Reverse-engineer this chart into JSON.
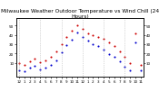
{
  "title": "Milwaukee Weather Outdoor Temperature vs Wind Chill (24 Hours)",
  "hours": [
    0,
    1,
    2,
    3,
    4,
    5,
    6,
    7,
    8,
    9,
    10,
    11,
    12,
    13,
    14,
    15,
    16,
    17,
    18,
    19,
    20,
    21,
    22,
    23
  ],
  "temp": [
    10,
    8,
    12,
    15,
    11,
    13,
    16,
    22,
    30,
    38,
    44,
    50,
    46,
    42,
    40,
    38,
    36,
    32,
    28,
    22,
    16,
    10,
    42,
    8
  ],
  "windchill": [
    2,
    1,
    5,
    7,
    3,
    5,
    8,
    13,
    21,
    29,
    35,
    43,
    38,
    34,
    30,
    28,
    24,
    19,
    16,
    12,
    6,
    2,
    32,
    2
  ],
  "temp_color": "#cc0000",
  "windchill_color": "#0000cc",
  "grid_color": "#aaaaaa",
  "bg_color": "#ffffff",
  "title_color": "#000000",
  "ylim": [
    -5,
    58
  ],
  "yticks": [
    10,
    20,
    30,
    40,
    50
  ],
  "xlim": [
    -0.5,
    23.5
  ],
  "xtick_positions": [
    0,
    1,
    2,
    3,
    4,
    5,
    6,
    7,
    8,
    9,
    10,
    11,
    12,
    13,
    14,
    15,
    16,
    17,
    18,
    19,
    20,
    21,
    22,
    23
  ],
  "xtick_labels": [
    "12",
    "1",
    "2",
    "3",
    "4",
    "5",
    "6",
    "7",
    "8",
    "9",
    "10",
    "11",
    "12",
    "1",
    "2",
    "3",
    "4",
    "5",
    "6",
    "7",
    "8",
    "9",
    "10",
    "11"
  ],
  "marker_size": 1.5,
  "title_fontsize": 4.2,
  "tick_fontsize": 3.0,
  "grid_interval": 4
}
